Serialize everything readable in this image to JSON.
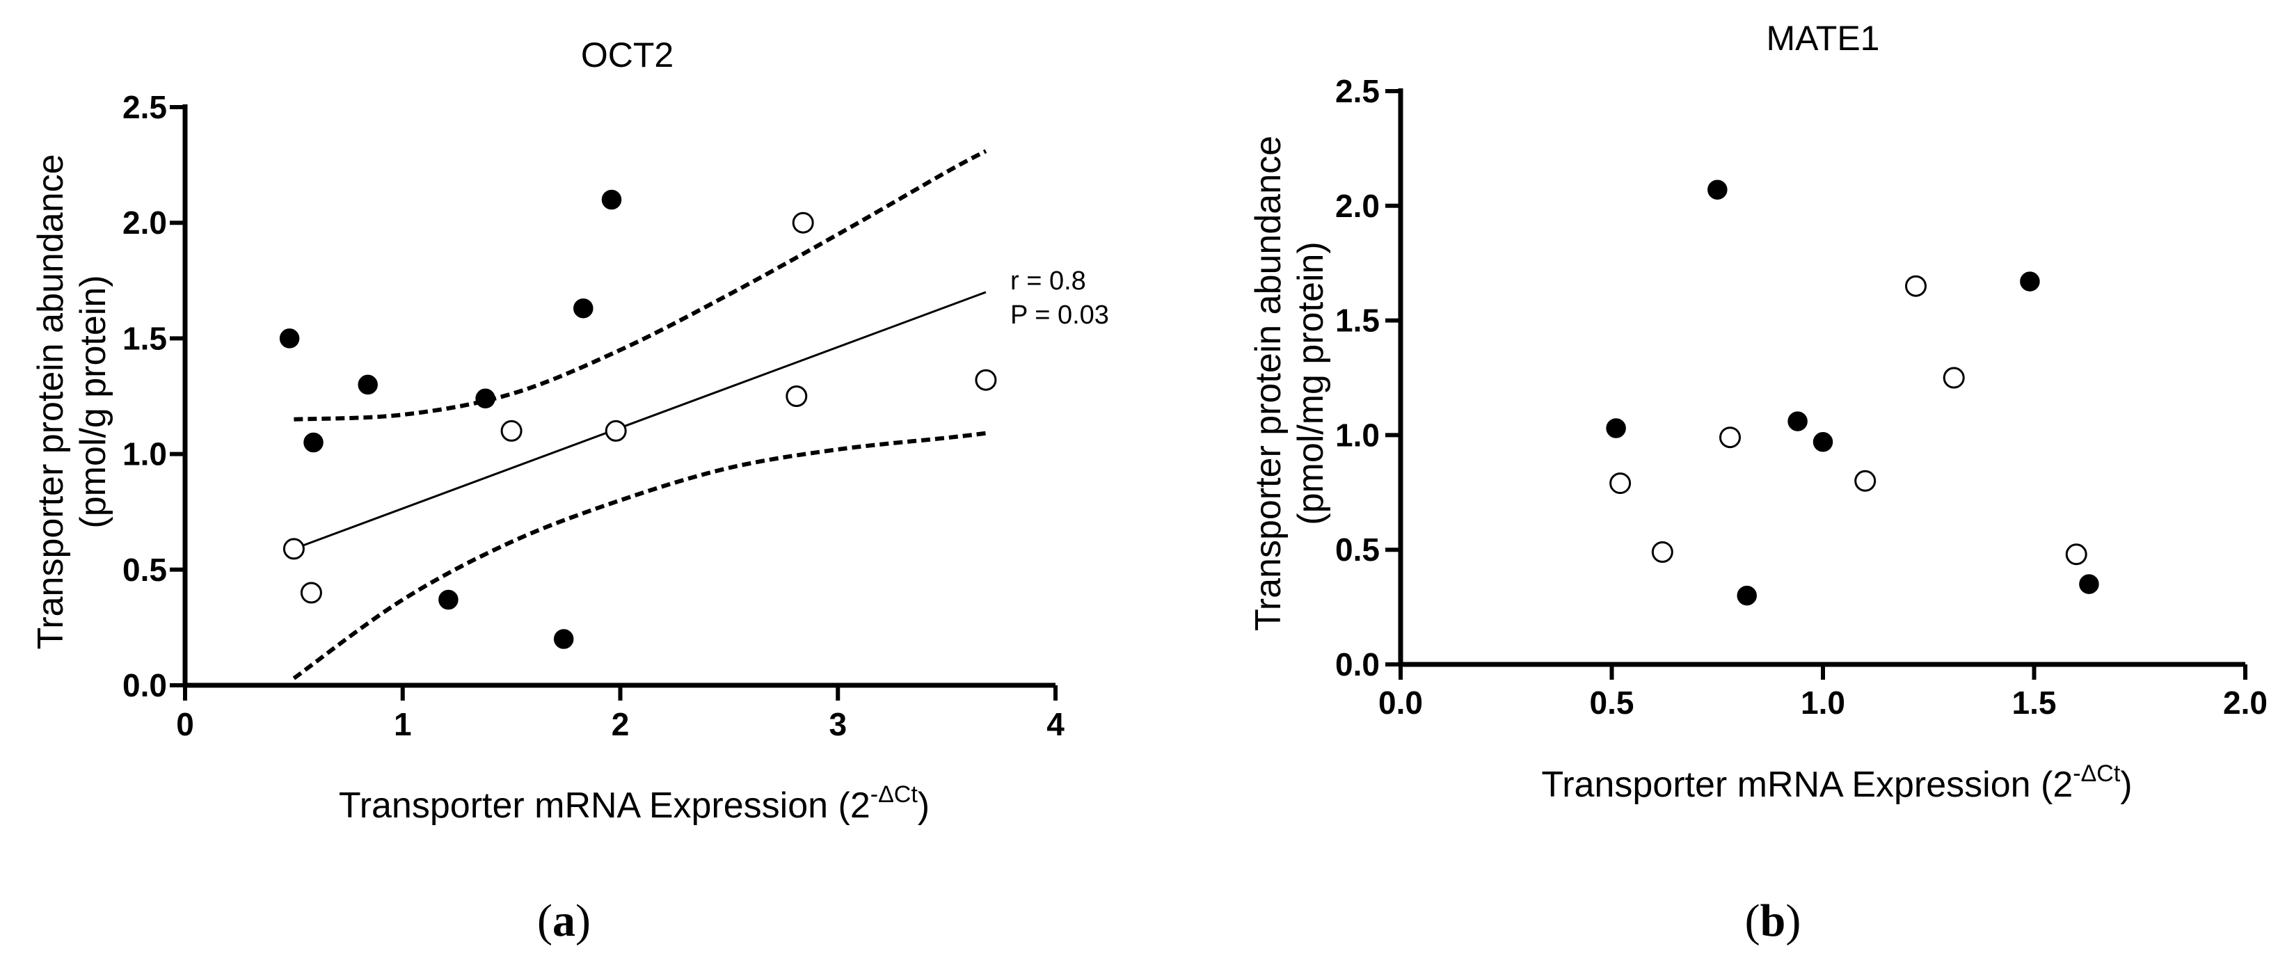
{
  "chart_data": [
    {
      "type": "scatter",
      "panel_label": "a",
      "title": "OCT2",
      "xlabel": "Transporter mRNA Expression (2",
      "xlabel_sup": "-ΔCt",
      "xlabel_close": ")",
      "ylabel_line1": "Transporter protein abundance",
      "ylabel_line2": "(pmol/g protein)",
      "xlim": [
        0,
        4
      ],
      "ylim": [
        0,
        2.5
      ],
      "x_ticks": [
        0,
        1,
        2,
        3,
        4
      ],
      "x_tick_labels": [
        "0",
        "1",
        "2",
        "3",
        "4"
      ],
      "y_ticks": [
        0,
        0.5,
        1.0,
        1.5,
        2.0,
        2.5
      ],
      "y_tick_labels": [
        "0.0",
        "0.5",
        "1.0",
        "1.5",
        "2.0",
        "2.5"
      ],
      "series": [
        {
          "name": "filled",
          "marker": "filled-circle",
          "points": [
            [
              0.48,
              1.5
            ],
            [
              0.59,
              1.05
            ],
            [
              0.84,
              1.3
            ],
            [
              1.21,
              0.37
            ],
            [
              1.38,
              1.24
            ],
            [
              1.74,
              0.2
            ],
            [
              1.83,
              1.63
            ],
            [
              1.96,
              2.1
            ]
          ]
        },
        {
          "name": "open",
          "marker": "open-circle",
          "points": [
            [
              0.5,
              0.59
            ],
            [
              0.58,
              0.4
            ],
            [
              1.5,
              1.1
            ],
            [
              1.98,
              1.1
            ],
            [
              2.81,
              1.25
            ],
            [
              2.84,
              2.0
            ],
            [
              3.68,
              1.32
            ]
          ]
        }
      ],
      "regression": {
        "x": [
          0.5,
          3.68
        ],
        "y": [
          0.59,
          1.7
        ],
        "ci_upper": {
          "x": [
            0.5,
            1.0,
            1.5,
            2.0,
            2.5,
            3.0,
            3.5,
            3.68
          ],
          "y": [
            1.15,
            1.17,
            1.26,
            1.45,
            1.69,
            1.95,
            2.22,
            2.31
          ]
        },
        "ci_lower": {
          "x": [
            0.5,
            1.0,
            1.5,
            2.0,
            2.5,
            3.0,
            3.5,
            3.68
          ],
          "y": [
            0.03,
            0.37,
            0.62,
            0.8,
            0.94,
            1.02,
            1.07,
            1.09
          ]
        },
        "r_label": "r = 0.8",
        "p_label": "P = 0.03"
      }
    },
    {
      "type": "scatter",
      "panel_label": "b",
      "title": "MATE1",
      "xlabel": "Transporter mRNA Expression (2",
      "xlabel_sup": "-ΔCt",
      "xlabel_close": ")",
      "ylabel_line1": "Transporter protein abundance",
      "ylabel_line2": "(pmol/mg protein)",
      "xlim": [
        0,
        2
      ],
      "ylim": [
        0,
        2.5
      ],
      "x_ticks": [
        0,
        0.5,
        1.0,
        1.5,
        2.0
      ],
      "x_tick_labels": [
        "0.0",
        "0.5",
        "1.0",
        "1.5",
        "2.0"
      ],
      "y_ticks": [
        0,
        0.5,
        1.0,
        1.5,
        2.0,
        2.5
      ],
      "y_tick_labels": [
        "0.0",
        "0.5",
        "1.0",
        "1.5",
        "2.0",
        "2.5"
      ],
      "series": [
        {
          "name": "filled",
          "marker": "filled-circle",
          "points": [
            [
              0.51,
              1.03
            ],
            [
              0.75,
              2.07
            ],
            [
              0.82,
              0.3
            ],
            [
              0.94,
              1.06
            ],
            [
              1.0,
              0.97
            ],
            [
              1.49,
              1.67
            ],
            [
              1.63,
              0.35
            ]
          ]
        },
        {
          "name": "open",
          "marker": "open-circle",
          "points": [
            [
              0.52,
              0.79
            ],
            [
              0.62,
              0.49
            ],
            [
              0.78,
              0.99
            ],
            [
              1.1,
              0.8
            ],
            [
              1.22,
              1.65
            ],
            [
              1.31,
              1.25
            ],
            [
              1.6,
              0.48
            ]
          ]
        }
      ]
    }
  ]
}
